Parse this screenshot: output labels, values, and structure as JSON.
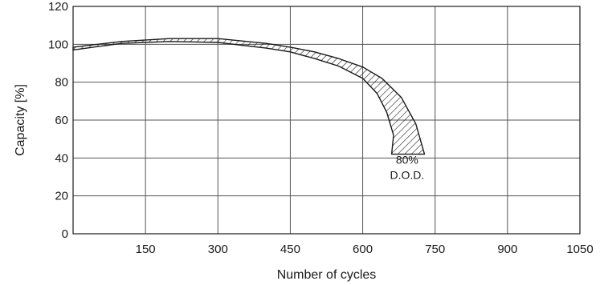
{
  "chart_data": {
    "type": "area",
    "title": "",
    "xlabel": "Number of cycles",
    "ylabel": "Capacity [%]",
    "xlim": [
      0,
      1050
    ],
    "ylim": [
      0,
      120
    ],
    "x_ticks": [
      150,
      300,
      450,
      600,
      750,
      900,
      1050
    ],
    "y_ticks": [
      0,
      20,
      40,
      60,
      80,
      100,
      120
    ],
    "grid": true,
    "band": {
      "upper": [
        [
          0,
          98.5
        ],
        [
          100,
          101.5
        ],
        [
          200,
          103
        ],
        [
          300,
          103
        ],
        [
          400,
          100.5
        ],
        [
          450,
          98.5
        ],
        [
          500,
          96
        ],
        [
          550,
          92.5
        ],
        [
          600,
          88
        ],
        [
          640,
          82
        ],
        [
          680,
          72
        ],
        [
          710,
          58
        ],
        [
          728,
          42
        ]
      ],
      "lower": [
        [
          0,
          97
        ],
        [
          100,
          100.5
        ],
        [
          200,
          101.5
        ],
        [
          300,
          101
        ],
        [
          400,
          98
        ],
        [
          450,
          96
        ],
        [
          500,
          92.5
        ],
        [
          550,
          88.5
        ],
        [
          600,
          82
        ],
        [
          630,
          74
        ],
        [
          650,
          64
        ],
        [
          664,
          52
        ],
        [
          660,
          42
        ]
      ]
    },
    "annotations": [
      {
        "text": "80%",
        "x": 692,
        "y": 37
      },
      {
        "text": "D.O.D.",
        "x": 692,
        "y": 29
      }
    ]
  }
}
